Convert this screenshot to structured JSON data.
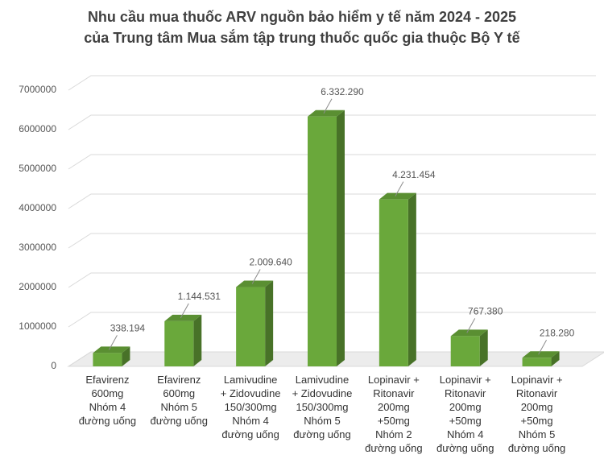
{
  "chart_data": {
    "type": "bar",
    "title": "Nhu cầu mua thuốc ARV nguồn bảo hiểm y tế năm 2024 - 2025\ncủa Trung tâm Mua sắm tập trung thuốc quốc gia thuộc Bộ Y tế",
    "categories": [
      "Efavirenz\n600mg\nNhóm 4\nđường uống",
      "Efavirenz\n600mg\nNhóm 5\nđường uống",
      "Lamivudine\n+ Zidovudine\n150/300mg\nNhóm 4\nđường uống",
      "Lamivudine\n+ Zidovudine\n150/300mg\nNhóm 5\nđường uống",
      "Lopinavir +\nRitonavir\n200mg\n+50mg\nNhóm 2\nđường uống",
      "Lopinavir +\nRitonavir\n200mg\n+50mg\nNhóm 4\nđường uống",
      "Lopinavir +\nRitonavir\n200mg\n+50mg\nNhóm 5\nđường uống"
    ],
    "values": [
      338194,
      1144531,
      2009640,
      6332290,
      4231454,
      767380,
      218280
    ],
    "value_labels": [
      "338.194",
      "1.144.531",
      "2.009.640",
      "6.332.290",
      "4.231.454",
      "767.380",
      "218.280"
    ],
    "color": "#6aa83b",
    "ylim": [
      0,
      7000000
    ],
    "yticks": [
      0,
      1000000,
      2000000,
      3000000,
      4000000,
      5000000,
      6000000,
      7000000
    ],
    "grid": true
  }
}
